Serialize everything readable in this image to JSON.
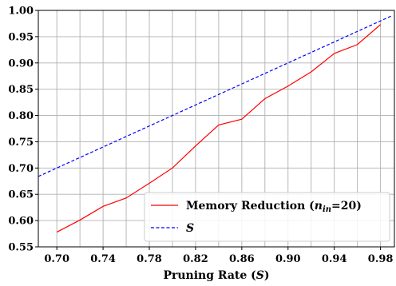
{
  "chart_data": {
    "type": "line",
    "xlabel": {
      "prefix": "Pruning Rate (",
      "var": "S",
      "suffix": ")"
    },
    "ylabel": "",
    "xlim": [
      0.684,
      0.992
    ],
    "ylim": [
      0.55,
      1.0
    ],
    "xticks": [
      0.7,
      0.74,
      0.78,
      0.82,
      0.86,
      0.9,
      0.94,
      0.98
    ],
    "xtick_labels": [
      "0.70",
      "0.74",
      "0.78",
      "0.82",
      "0.86",
      "0.90",
      "0.94",
      "0.98"
    ],
    "xgrid": [
      0.7,
      0.72,
      0.74,
      0.76,
      0.78,
      0.8,
      0.82,
      0.84,
      0.86,
      0.88,
      0.9,
      0.92,
      0.94,
      0.96,
      0.98
    ],
    "yticks": [
      0.55,
      0.6,
      0.65,
      0.7,
      0.75,
      0.8,
      0.85,
      0.9,
      0.95,
      1.0
    ],
    "ytick_labels": [
      "0.55",
      "0.60",
      "0.65",
      "0.70",
      "0.75",
      "0.80",
      "0.85",
      "0.90",
      "0.95",
      "1.00"
    ],
    "grid": true,
    "legend_position": "lower-right",
    "series": [
      {
        "name": {
          "prefix": "Memory Reduction (",
          "var": "n",
          "sub": "in",
          "suffix": "=20)"
        },
        "color": "#ff0000",
        "style": "solid",
        "x": [
          0.7,
          0.72,
          0.74,
          0.76,
          0.78,
          0.8,
          0.82,
          0.84,
          0.86,
          0.88,
          0.9,
          0.92,
          0.94,
          0.96,
          0.98
        ],
        "y": [
          0.578,
          0.601,
          0.627,
          0.643,
          0.671,
          0.7,
          0.742,
          0.782,
          0.793,
          0.832,
          0.856,
          0.883,
          0.918,
          0.935,
          0.973
        ]
      },
      {
        "name": {
          "prefix": "",
          "var": "S",
          "sub": "",
          "suffix": ""
        },
        "color": "#0000ff",
        "style": "dashed",
        "x": [
          0.684,
          0.99
        ],
        "y": [
          0.684,
          0.99
        ]
      }
    ]
  }
}
